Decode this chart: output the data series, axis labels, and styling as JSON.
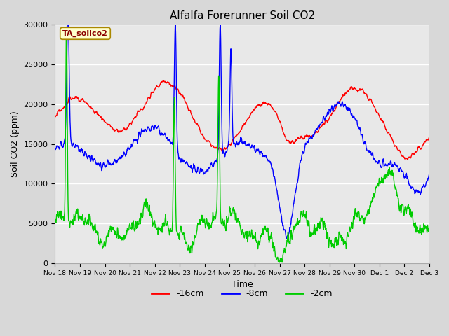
{
  "title": "Alfalfa Forerunner Soil CO2",
  "xlabel": "Time",
  "ylabel": "Soil CO2 (ppm)",
  "ylim": [
    0,
    30000
  ],
  "yticks": [
    0,
    5000,
    10000,
    15000,
    20000,
    25000,
    30000
  ],
  "ytick_labels": [
    "0",
    "5000",
    "10000",
    "15000",
    "20000",
    "25000",
    "30000"
  ],
  "legend_labels": [
    "-16cm",
    "-8cm",
    "-2cm"
  ],
  "legend_colors": [
    "#ff0000",
    "#0000ff",
    "#00cc00"
  ],
  "annotation_text": "TA_soilco2",
  "bg_color": "#e8e8e8",
  "line_width": 1.0,
  "xtick_labels": [
    "Nov 18",
    "Nov 19",
    "Nov 20",
    "Nov 21",
    "Nov 22",
    "Nov 23",
    "Nov 24",
    "Nov 25",
    "Nov 26",
    "Nov 27",
    "Nov 28",
    "Nov 29",
    "Nov 30",
    "Dec 1",
    "Dec 2",
    "Dec 3"
  ],
  "num_points": 1440,
  "seed": 42
}
